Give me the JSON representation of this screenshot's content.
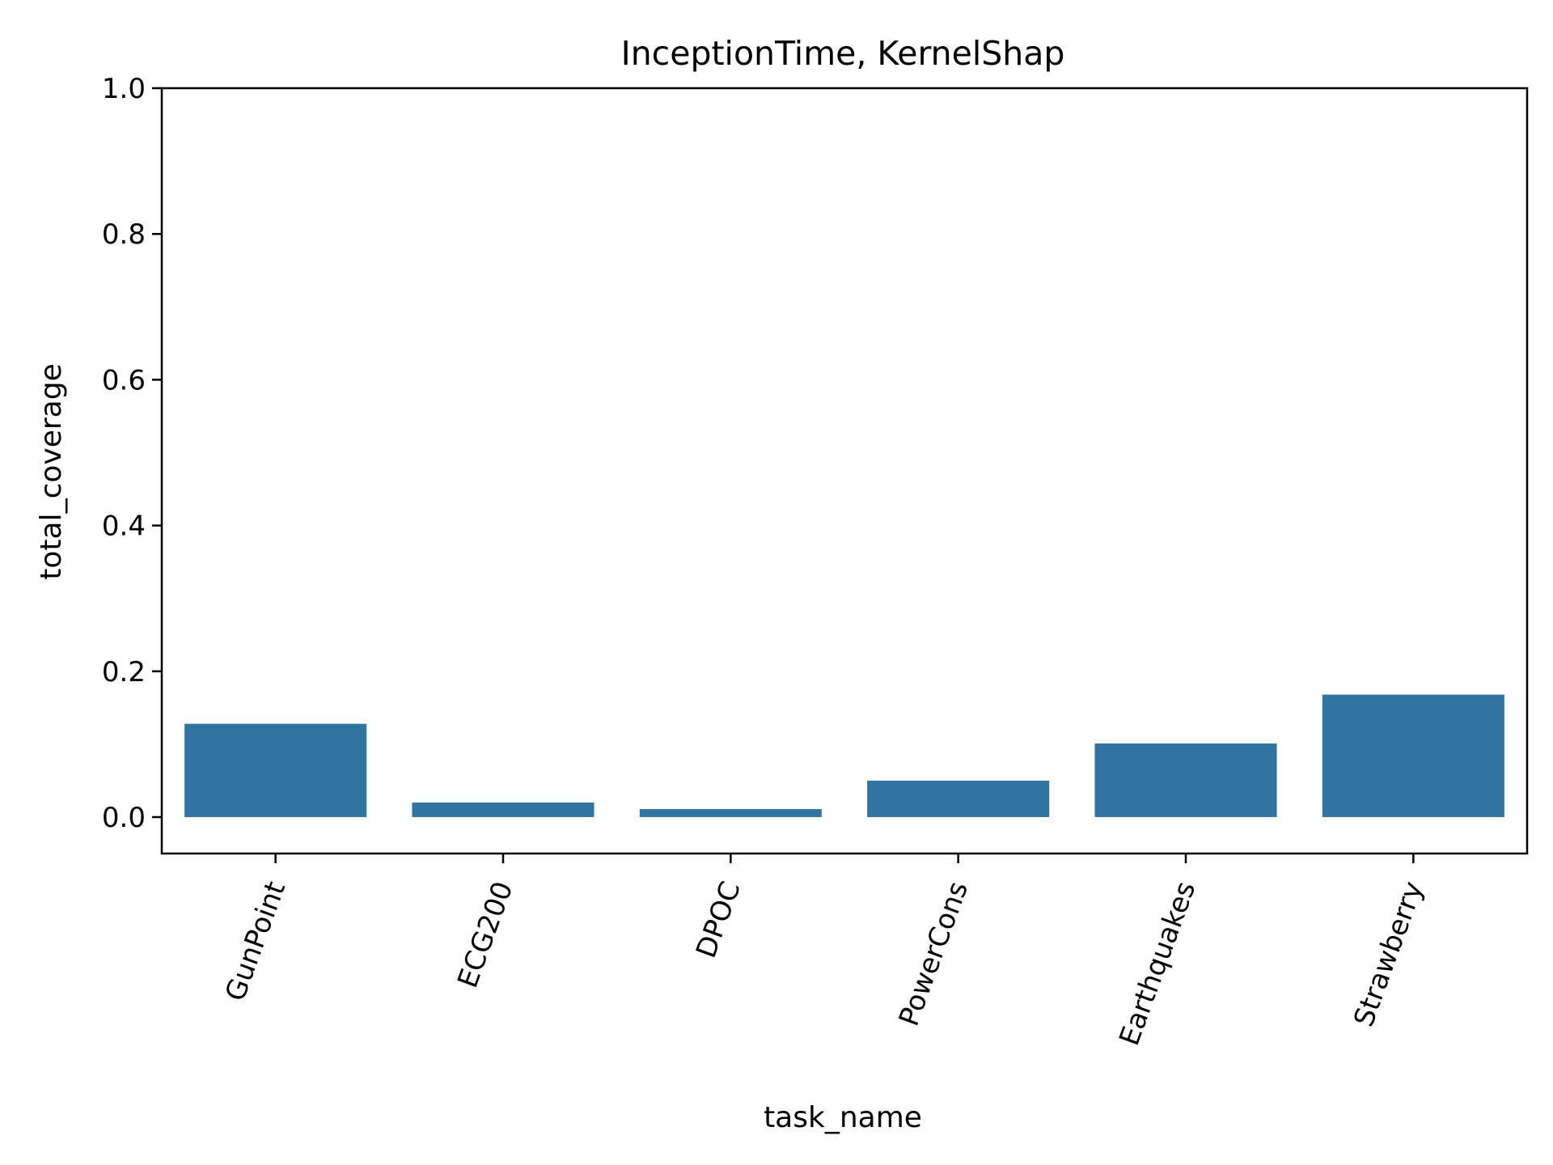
{
  "chart_data": {
    "type": "bar",
    "title": "InceptionTime, KernelShap",
    "xlabel": "task_name",
    "ylabel": "total_coverage",
    "categories": [
      "GunPoint",
      "ECG200",
      "DPOC",
      "PowerCons",
      "Earthquakes",
      "Strawberry"
    ],
    "values": [
      0.128,
      0.02,
      0.011,
      0.05,
      0.101,
      0.168
    ],
    "ylim": [
      -0.05,
      1.0
    ],
    "yticks": [
      "0.0",
      "0.2",
      "0.4",
      "0.6",
      "0.8",
      "1.0"
    ],
    "bar_color": "#3274a1",
    "grid": false,
    "legend": "none"
  }
}
